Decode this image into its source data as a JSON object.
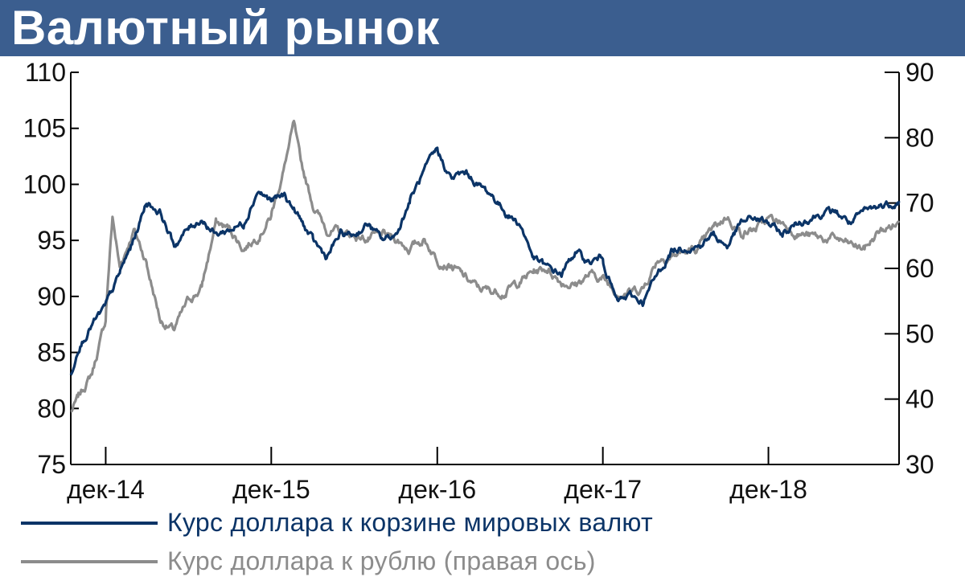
{
  "header": {
    "title": "Валютный рынок"
  },
  "colors": {
    "header_bg": "#3b5e8f",
    "series_dxy": "#0b3467",
    "series_rub": "#8c8c8c"
  },
  "legend": {
    "dxy": "Курс доллара к корзине мировых валют",
    "rub": "Курс доллара к рублю (правая ось)"
  },
  "chart_data": {
    "type": "line",
    "title": "Валютный рынок",
    "x_start": "2014-09-15",
    "x_end": "2019-09-15",
    "x_ticks": [
      "дек-14",
      "дек-15",
      "дек-16",
      "дек-17",
      "дек-18"
    ],
    "x_tick_dates": [
      "2014-12-01",
      "2015-12-01",
      "2016-12-01",
      "2017-12-01",
      "2018-12-01"
    ],
    "y_left": {
      "range": [
        75,
        110
      ],
      "ticks": [
        "75",
        "80",
        "85",
        "90",
        "95",
        "100",
        "105",
        "110"
      ]
    },
    "y_right": {
      "range": [
        30,
        90
      ],
      "ticks": [
        "30",
        "40",
        "50",
        "60",
        "70",
        "80",
        "90"
      ]
    },
    "grid": false,
    "legend_position": "bottom",
    "series": [
      {
        "name": "Курс доллара к корзине мировых валют",
        "axis": "left",
        "color": "#0b3467",
        "points": [
          [
            "2014-09-15",
            83.0
          ],
          [
            "2014-10-01",
            85.5
          ],
          [
            "2014-11-01",
            87.5
          ],
          [
            "2014-12-01",
            89.0
          ],
          [
            "2015-01-01",
            92.0
          ],
          [
            "2015-02-01",
            95.0
          ],
          [
            "2015-03-01",
            98.5
          ],
          [
            "2015-04-01",
            97.5
          ],
          [
            "2015-05-01",
            94.5
          ],
          [
            "2015-06-01",
            96.0
          ],
          [
            "2015-07-01",
            97.0
          ],
          [
            "2015-08-01",
            95.5
          ],
          [
            "2015-09-01",
            96.0
          ],
          [
            "2015-10-01",
            96.5
          ],
          [
            "2015-11-01",
            99.5
          ],
          [
            "2015-12-01",
            98.5
          ],
          [
            "2016-01-01",
            99.0
          ],
          [
            "2016-02-01",
            97.0
          ],
          [
            "2016-03-01",
            95.0
          ],
          [
            "2016-04-01",
            93.5
          ],
          [
            "2016-05-01",
            95.5
          ],
          [
            "2016-06-01",
            95.5
          ],
          [
            "2016-07-01",
            96.5
          ],
          [
            "2016-08-01",
            95.0
          ],
          [
            "2016-09-01",
            95.5
          ],
          [
            "2016-10-01",
            98.5
          ],
          [
            "2016-11-01",
            101.0
          ],
          [
            "2016-12-01",
            103.0
          ],
          [
            "2017-01-01",
            100.5
          ],
          [
            "2017-02-01",
            101.0
          ],
          [
            "2017-03-01",
            100.0
          ],
          [
            "2017-04-01",
            99.0
          ],
          [
            "2017-05-01",
            97.5
          ],
          [
            "2017-06-01",
            96.5
          ],
          [
            "2017-07-01",
            93.5
          ],
          [
            "2017-08-01",
            92.5
          ],
          [
            "2017-09-01",
            92.0
          ],
          [
            "2017-10-01",
            94.0
          ],
          [
            "2017-11-01",
            93.0
          ],
          [
            "2017-12-01",
            93.5
          ],
          [
            "2018-01-01",
            89.5
          ],
          [
            "2018-02-01",
            90.0
          ],
          [
            "2018-03-01",
            89.5
          ],
          [
            "2018-04-01",
            92.0
          ],
          [
            "2018-05-01",
            94.0
          ],
          [
            "2018-06-01",
            94.5
          ],
          [
            "2018-07-01",
            94.5
          ],
          [
            "2018-08-01",
            95.5
          ],
          [
            "2018-09-01",
            94.5
          ],
          [
            "2018-10-01",
            96.5
          ],
          [
            "2018-11-01",
            97.0
          ],
          [
            "2018-12-01",
            96.5
          ],
          [
            "2019-01-01",
            95.5
          ],
          [
            "2019-02-01",
            96.5
          ],
          [
            "2019-03-01",
            97.0
          ],
          [
            "2019-04-01",
            97.5
          ],
          [
            "2019-05-01",
            97.5
          ],
          [
            "2019-06-01",
            96.5
          ],
          [
            "2019-07-01",
            97.5
          ],
          [
            "2019-08-01",
            98.0
          ],
          [
            "2019-09-15",
            98.5
          ]
        ]
      },
      {
        "name": "Курс доллара к рублю (правая ось)",
        "axis": "right",
        "color": "#8c8c8c",
        "points": [
          [
            "2014-09-15",
            38.0
          ],
          [
            "2014-10-01",
            40.0
          ],
          [
            "2014-11-01",
            44.0
          ],
          [
            "2014-12-01",
            52.0
          ],
          [
            "2014-12-16",
            68.0
          ],
          [
            "2015-01-01",
            60.0
          ],
          [
            "2015-02-01",
            66.0
          ],
          [
            "2015-03-01",
            61.0
          ],
          [
            "2015-04-01",
            52.0
          ],
          [
            "2015-05-01",
            50.5
          ],
          [
            "2015-06-01",
            55.0
          ],
          [
            "2015-07-01",
            57.0
          ],
          [
            "2015-08-01",
            67.0
          ],
          [
            "2015-09-01",
            66.0
          ],
          [
            "2015-10-01",
            63.0
          ],
          [
            "2015-11-01",
            65.0
          ],
          [
            "2015-12-01",
            68.0
          ],
          [
            "2016-01-01",
            76.0
          ],
          [
            "2016-01-20",
            82.0
          ],
          [
            "2016-02-01",
            77.0
          ],
          [
            "2016-03-01",
            70.0
          ],
          [
            "2016-04-01",
            66.0
          ],
          [
            "2016-05-01",
            65.5
          ],
          [
            "2016-06-01",
            65.0
          ],
          [
            "2016-07-01",
            64.5
          ],
          [
            "2016-08-01",
            65.0
          ],
          [
            "2016-09-01",
            64.5
          ],
          [
            "2016-10-01",
            63.0
          ],
          [
            "2016-11-01",
            64.5
          ],
          [
            "2016-12-01",
            61.5
          ],
          [
            "2017-01-01",
            60.5
          ],
          [
            "2017-02-01",
            58.5
          ],
          [
            "2017-03-01",
            57.0
          ],
          [
            "2017-04-01",
            56.5
          ],
          [
            "2017-05-01",
            56.5
          ],
          [
            "2017-06-01",
            58.0
          ],
          [
            "2017-07-01",
            59.5
          ],
          [
            "2017-08-01",
            60.0
          ],
          [
            "2017-09-01",
            58.0
          ],
          [
            "2017-10-01",
            57.5
          ],
          [
            "2017-11-01",
            59.0
          ],
          [
            "2017-12-01",
            58.5
          ],
          [
            "2018-01-01",
            56.5
          ],
          [
            "2018-02-01",
            56.5
          ],
          [
            "2018-03-01",
            57.0
          ],
          [
            "2018-04-01",
            61.5
          ],
          [
            "2018-05-01",
            62.0
          ],
          [
            "2018-06-01",
            62.5
          ],
          [
            "2018-07-01",
            63.0
          ],
          [
            "2018-08-01",
            66.0
          ],
          [
            "2018-09-01",
            68.0
          ],
          [
            "2018-10-01",
            65.5
          ],
          [
            "2018-11-01",
            66.0
          ],
          [
            "2018-12-01",
            67.5
          ],
          [
            "2019-01-01",
            67.0
          ],
          [
            "2019-02-01",
            65.5
          ],
          [
            "2019-03-01",
            65.0
          ],
          [
            "2019-04-01",
            64.5
          ],
          [
            "2019-05-01",
            64.5
          ],
          [
            "2019-06-01",
            63.5
          ],
          [
            "2019-07-01",
            63.0
          ],
          [
            "2019-08-01",
            65.5
          ],
          [
            "2019-09-15",
            67.0
          ]
        ]
      }
    ]
  }
}
